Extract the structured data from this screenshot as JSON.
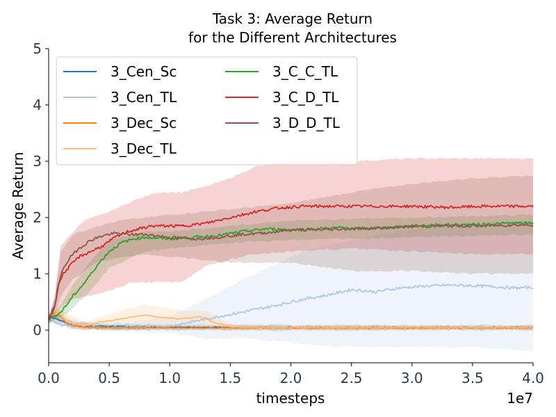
{
  "chart_data": {
    "type": "line",
    "title_lines": [
      "Task 3: Average Return",
      "for the Different Architectures"
    ],
    "xlabel": "timesteps",
    "ylabel": "Average Return",
    "x_exponent_label": "1e7",
    "xlim": [
      0,
      4.0
    ],
    "ylim": [
      -0.58,
      5
    ],
    "x_ticks": [
      0.0,
      0.5,
      1.0,
      1.5,
      2.0,
      2.5,
      3.0,
      3.5,
      4.0
    ],
    "x_tick_labels": [
      "0.0",
      "0.5",
      "1.0",
      "1.5",
      "2.0",
      "2.5",
      "3.0",
      "3.5",
      "4.0"
    ],
    "y_ticks": [
      0,
      1,
      2,
      3,
      4,
      5
    ],
    "y_tick_labels": [
      "0",
      "1",
      "2",
      "3",
      "4",
      "5"
    ],
    "grid": false,
    "legend_position": "top-left",
    "legend_columns": 2,
    "series": [
      {
        "name": "3_Cen_Sc",
        "color": "#1f77b4",
        "points": [
          [
            0,
            0.22
          ],
          [
            0.05,
            0.22
          ],
          [
            0.1,
            0.17
          ],
          [
            0.15,
            0.12
          ],
          [
            0.2,
            0.09
          ],
          [
            0.3,
            0.07
          ],
          [
            0.5,
            0.07
          ],
          [
            0.8,
            0.06
          ],
          [
            1.2,
            0.05
          ],
          [
            1.6,
            0.05
          ],
          [
            2.0,
            0.05
          ],
          [
            2.5,
            0.05
          ],
          [
            3.0,
            0.05
          ],
          [
            3.5,
            0.05
          ],
          [
            4.0,
            0.05
          ]
        ],
        "band": [
          [
            0,
            0.15,
            0.3
          ],
          [
            0.1,
            0.1,
            0.25
          ],
          [
            0.2,
            0.02,
            0.15
          ],
          [
            0.5,
            0.0,
            0.12
          ],
          [
            1.0,
            0.0,
            0.1
          ],
          [
            2.0,
            0.0,
            0.09
          ],
          [
            3.0,
            0.0,
            0.09
          ],
          [
            4.0,
            0.0,
            0.09
          ]
        ]
      },
      {
        "name": "3_Cen_TL",
        "color": "#aec7e8",
        "points": [
          [
            0,
            0.2
          ],
          [
            0.1,
            0.1
          ],
          [
            0.3,
            0.05
          ],
          [
            0.6,
            0.04
          ],
          [
            1.0,
            0.07
          ],
          [
            1.3,
            0.2
          ],
          [
            1.6,
            0.32
          ],
          [
            1.9,
            0.45
          ],
          [
            2.1,
            0.55
          ],
          [
            2.3,
            0.62
          ],
          [
            2.5,
            0.72
          ],
          [
            2.7,
            0.68
          ],
          [
            2.9,
            0.75
          ],
          [
            3.1,
            0.78
          ],
          [
            3.3,
            0.8
          ],
          [
            3.5,
            0.79
          ],
          [
            3.7,
            0.77
          ],
          [
            3.85,
            0.75
          ],
          [
            4.0,
            0.76
          ]
        ],
        "band": [
          [
            0,
            0.15,
            0.25
          ],
          [
            0.5,
            0.0,
            0.08
          ],
          [
            1.0,
            -0.05,
            0.25
          ],
          [
            1.3,
            -0.15,
            0.55
          ],
          [
            1.6,
            -0.15,
            0.9
          ],
          [
            1.9,
            -0.2,
            1.2
          ],
          [
            2.1,
            -0.25,
            1.4
          ],
          [
            2.5,
            -0.3,
            1.6
          ],
          [
            3.0,
            -0.3,
            1.8
          ],
          [
            3.5,
            -0.3,
            1.9
          ],
          [
            4.0,
            -0.38,
            1.95
          ]
        ]
      },
      {
        "name": "3_Dec_Sc",
        "color": "#ff7f0e",
        "points": [
          [
            0,
            0.25
          ],
          [
            0.05,
            0.3
          ],
          [
            0.1,
            0.25
          ],
          [
            0.15,
            0.12
          ],
          [
            0.2,
            0.08
          ],
          [
            0.3,
            0.05
          ],
          [
            0.6,
            0.04
          ],
          [
            1.0,
            0.04
          ],
          [
            1.5,
            0.04
          ],
          [
            2.0,
            0.04
          ],
          [
            3.0,
            0.04
          ],
          [
            4.0,
            0.04
          ]
        ],
        "band": [
          [
            0,
            0.2,
            0.32
          ],
          [
            0.1,
            0.15,
            0.32
          ],
          [
            0.2,
            0.02,
            0.15
          ],
          [
            0.5,
            0.0,
            0.08
          ],
          [
            4.0,
            0.0,
            0.08
          ]
        ]
      },
      {
        "name": "3_Dec_TL",
        "color": "#ffbb78",
        "points": [
          [
            0,
            0.22
          ],
          [
            0.08,
            0.32
          ],
          [
            0.15,
            0.15
          ],
          [
            0.3,
            0.08
          ],
          [
            0.45,
            0.15
          ],
          [
            0.6,
            0.2
          ],
          [
            0.8,
            0.27
          ],
          [
            0.95,
            0.22
          ],
          [
            1.1,
            0.2
          ],
          [
            1.25,
            0.24
          ],
          [
            1.35,
            0.15
          ],
          [
            1.5,
            0.06
          ],
          [
            1.7,
            0.05
          ],
          [
            2.0,
            0.05
          ],
          [
            3.0,
            0.05
          ],
          [
            4.0,
            0.05
          ]
        ],
        "band": [
          [
            0,
            0.18,
            0.28
          ],
          [
            0.1,
            0.1,
            0.35
          ],
          [
            0.3,
            0.0,
            0.15
          ],
          [
            0.6,
            0.02,
            0.35
          ],
          [
            0.8,
            0.05,
            0.45
          ],
          [
            1.1,
            0.05,
            0.35
          ],
          [
            1.3,
            0.03,
            0.35
          ],
          [
            1.5,
            0.0,
            0.12
          ],
          [
            2.0,
            0.0,
            0.08
          ],
          [
            4.0,
            0.0,
            0.08
          ]
        ]
      },
      {
        "name": "3_C_C_TL",
        "color": "#2ca02c",
        "points": [
          [
            0,
            0.2
          ],
          [
            0.05,
            0.25
          ],
          [
            0.1,
            0.32
          ],
          [
            0.15,
            0.45
          ],
          [
            0.2,
            0.6
          ],
          [
            0.3,
            0.85
          ],
          [
            0.4,
            1.15
          ],
          [
            0.5,
            1.4
          ],
          [
            0.6,
            1.55
          ],
          [
            0.7,
            1.62
          ],
          [
            0.8,
            1.65
          ],
          [
            1.0,
            1.62
          ],
          [
            1.2,
            1.65
          ],
          [
            1.4,
            1.68
          ],
          [
            1.6,
            1.75
          ],
          [
            1.8,
            1.8
          ],
          [
            2.0,
            1.78
          ],
          [
            2.2,
            1.8
          ],
          [
            2.4,
            1.82
          ],
          [
            2.6,
            1.8
          ],
          [
            2.8,
            1.82
          ],
          [
            3.0,
            1.85
          ],
          [
            3.2,
            1.87
          ],
          [
            3.4,
            1.87
          ],
          [
            3.6,
            1.88
          ],
          [
            3.8,
            1.9
          ],
          [
            4.0,
            1.9
          ]
        ],
        "band": [
          [
            0,
            0.15,
            0.25
          ],
          [
            0.1,
            0.2,
            0.45
          ],
          [
            0.2,
            0.4,
            0.8
          ],
          [
            0.3,
            0.6,
            1.1
          ],
          [
            0.5,
            1.1,
            1.6
          ],
          [
            0.8,
            1.4,
            1.75
          ],
          [
            1.0,
            1.45,
            1.75
          ],
          [
            1.5,
            1.55,
            1.85
          ],
          [
            2.0,
            1.6,
            1.95
          ],
          [
            3.0,
            1.65,
            2.0
          ],
          [
            4.0,
            1.7,
            2.05
          ]
        ]
      },
      {
        "name": "3_C_D_TL",
        "color": "#d62728",
        "points": [
          [
            0,
            0.18
          ],
          [
            0.05,
            0.4
          ],
          [
            0.08,
            0.8
          ],
          [
            0.12,
            1.0
          ],
          [
            0.18,
            1.15
          ],
          [
            0.25,
            1.3
          ],
          [
            0.35,
            1.4
          ],
          [
            0.45,
            1.5
          ],
          [
            0.55,
            1.65
          ],
          [
            0.65,
            1.75
          ],
          [
            0.75,
            1.8
          ],
          [
            0.85,
            1.85
          ],
          [
            0.95,
            1.85
          ],
          [
            1.1,
            1.85
          ],
          [
            1.3,
            1.9
          ],
          [
            1.5,
            2.0
          ],
          [
            1.7,
            2.1
          ],
          [
            1.9,
            2.17
          ],
          [
            2.1,
            2.2
          ],
          [
            2.4,
            2.2
          ],
          [
            2.7,
            2.2
          ],
          [
            3.0,
            2.2
          ],
          [
            3.3,
            2.18
          ],
          [
            3.6,
            2.2
          ],
          [
            3.85,
            2.2
          ],
          [
            4.0,
            2.2
          ]
        ],
        "band": [
          [
            0,
            0.1,
            0.25
          ],
          [
            0.05,
            0.2,
            0.6
          ],
          [
            0.1,
            0.4,
            1.5
          ],
          [
            0.2,
            0.55,
            1.75
          ],
          [
            0.3,
            0.6,
            1.95
          ],
          [
            0.5,
            0.7,
            2.1
          ],
          [
            0.7,
            0.85,
            2.3
          ],
          [
            0.9,
            0.85,
            2.45
          ],
          [
            1.1,
            0.85,
            2.45
          ],
          [
            1.3,
            1.15,
            2.55
          ],
          [
            1.5,
            1.25,
            2.7
          ],
          [
            1.7,
            1.35,
            2.9
          ],
          [
            2.0,
            1.4,
            3.0
          ],
          [
            2.5,
            1.45,
            3.0
          ],
          [
            3.0,
            1.4,
            3.05
          ],
          [
            3.5,
            1.35,
            3.05
          ],
          [
            4.0,
            1.35,
            3.05
          ]
        ]
      },
      {
        "name": "3_D_D_TL",
        "color": "#8c564b",
        "points": [
          [
            0,
            0.18
          ],
          [
            0.05,
            0.45
          ],
          [
            0.08,
            0.8
          ],
          [
            0.12,
            1.1
          ],
          [
            0.18,
            1.3
          ],
          [
            0.25,
            1.45
          ],
          [
            0.35,
            1.6
          ],
          [
            0.45,
            1.68
          ],
          [
            0.55,
            1.72
          ],
          [
            0.65,
            1.7
          ],
          [
            0.8,
            1.7
          ],
          [
            1.0,
            1.65
          ],
          [
            1.2,
            1.62
          ],
          [
            1.4,
            1.65
          ],
          [
            1.6,
            1.7
          ],
          [
            1.8,
            1.73
          ],
          [
            2.0,
            1.78
          ],
          [
            2.2,
            1.78
          ],
          [
            2.5,
            1.8
          ],
          [
            2.8,
            1.82
          ],
          [
            3.0,
            1.84
          ],
          [
            3.3,
            1.85
          ],
          [
            3.6,
            1.85
          ],
          [
            3.85,
            1.87
          ],
          [
            4.0,
            1.87
          ]
        ],
        "band": [
          [
            0,
            0.1,
            0.25
          ],
          [
            0.05,
            0.25,
            0.6
          ],
          [
            0.1,
            0.6,
            1.4
          ],
          [
            0.2,
            0.9,
            1.7
          ],
          [
            0.4,
            1.2,
            1.85
          ],
          [
            0.6,
            1.3,
            1.95
          ],
          [
            0.8,
            1.35,
            2.0
          ],
          [
            1.0,
            1.3,
            2.05
          ],
          [
            1.5,
            1.2,
            2.15
          ],
          [
            2.0,
            1.2,
            2.25
          ],
          [
            2.5,
            1.05,
            2.45
          ],
          [
            3.0,
            1.05,
            2.6
          ],
          [
            3.5,
            1.0,
            2.7
          ],
          [
            4.0,
            1.0,
            2.75
          ]
        ]
      }
    ]
  }
}
